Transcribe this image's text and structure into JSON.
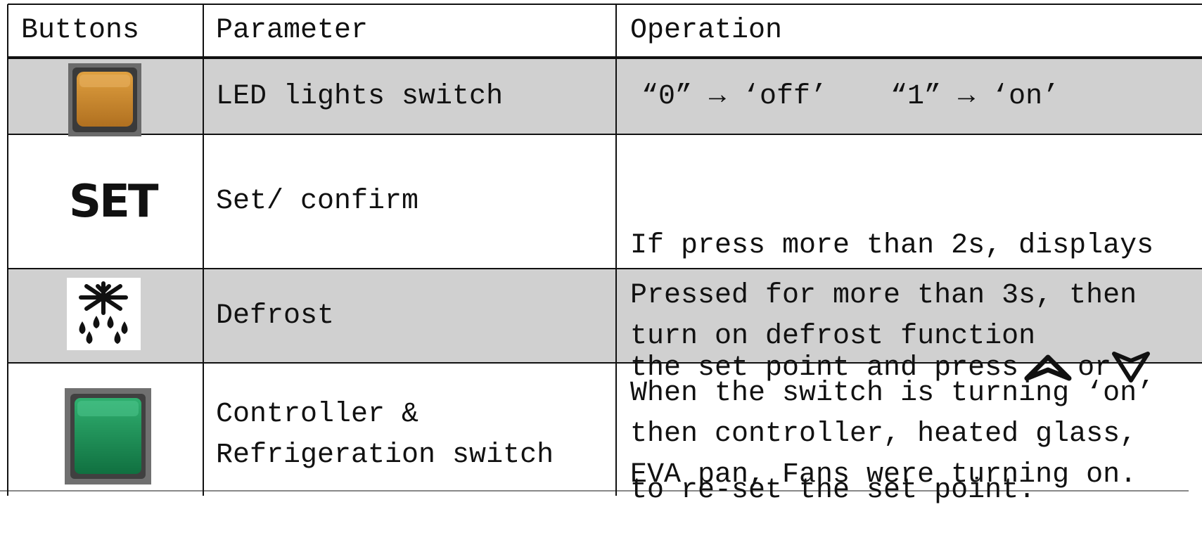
{
  "header": {
    "buttons": "Buttons",
    "parameter": "Parameter",
    "operation": "Operation"
  },
  "rows": [
    {
      "parameter": [
        "LED lights switch"
      ],
      "operation": [
        [
          "“0” → ‘off’",
          "“1” → ‘on’"
        ]
      ]
    },
    {
      "button_text": "SET",
      "parameter": [
        "Set/ confirm"
      ],
      "operation": [
        [
          "If press more than 2s, displays"
        ],
        [
          "the set point and press",
          "or"
        ],
        [
          "to re-set the set point."
        ]
      ]
    },
    {
      "parameter": [
        "Defrost"
      ],
      "operation": [
        [
          "Pressed for more than 3s, then"
        ],
        [
          "turn on defrost function"
        ]
      ]
    },
    {
      "parameter": [
        "Controller &",
        "Refrigeration switch"
      ],
      "operation": [
        [
          "When the switch is turning ‘on’"
        ],
        [
          "then controller, heated glass,"
        ],
        [
          "EVA pan, Fans were turning on."
        ]
      ]
    }
  ]
}
